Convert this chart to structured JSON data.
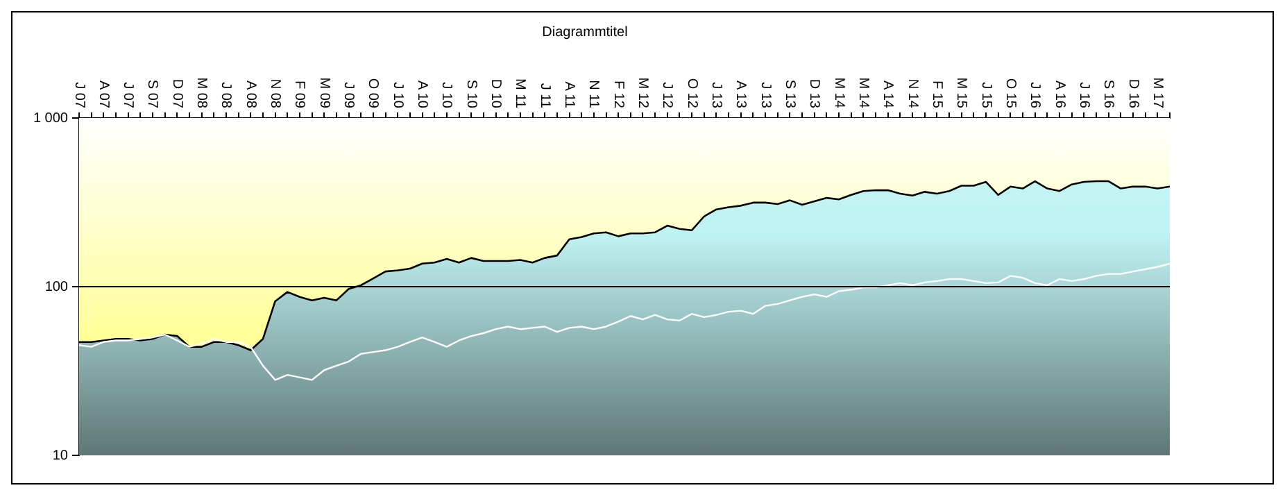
{
  "chart_data": {
    "type": "line",
    "title": "Diagrammtitel",
    "categories": [
      "J 07",
      null,
      "A 07",
      null,
      "J 07",
      null,
      "S 07",
      null,
      "D 07",
      null,
      "M 08",
      null,
      "J 08",
      null,
      "A 08",
      null,
      "N 08",
      null,
      "F 09",
      null,
      "M 09",
      null,
      "J 09",
      null,
      "O 09",
      null,
      "J 10",
      null,
      "A 10",
      null,
      "J 10",
      null,
      "S 10",
      null,
      "D 10",
      null,
      "M 11",
      null,
      "J 11",
      null,
      "A 11",
      null,
      "N 11",
      null,
      "F 12",
      null,
      "M 12",
      null,
      "J 12",
      null,
      "O 12",
      null,
      "J 13",
      null,
      "A 13",
      null,
      "J 13",
      null,
      "S 13",
      null,
      "D 13",
      null,
      "M 14",
      null,
      "M 14",
      null,
      "A 14",
      null,
      "N 14",
      null,
      "F 15",
      null,
      "M 15",
      null,
      "J 15",
      null,
      "O 15",
      null,
      "J 16",
      null,
      "A 16",
      null,
      "J 16",
      null,
      "S 16",
      null,
      "D 16",
      null,
      "M 17",
      null
    ],
    "series": [
      {
        "type": "area",
        "color": "#000000",
        "values": [
          47,
          47,
          48,
          49,
          49,
          48,
          49,
          52,
          51,
          44,
          44,
          47,
          47,
          45,
          42,
          49,
          82,
          93,
          87,
          83,
          86,
          83,
          97,
          102,
          112,
          123,
          125,
          128,
          137,
          139,
          146,
          139,
          148,
          142,
          142,
          142,
          144,
          139,
          148,
          153,
          191,
          197,
          207,
          210,
          199,
          207,
          207,
          210,
          230,
          220,
          216,
          261,
          287,
          296,
          302,
          315,
          315,
          309,
          325,
          306,
          321,
          336,
          329,
          350,
          369,
          373,
          373,
          356,
          347,
          365,
          356,
          369,
          397,
          397,
          418,
          350,
          392,
          382,
          422,
          382,
          369,
          404,
          418,
          422,
          422,
          382,
          392,
          392,
          382,
          392
        ]
      },
      {
        "type": "line",
        "color": "#ffffff",
        "values": [
          45,
          44,
          47,
          48,
          48,
          49,
          50,
          52,
          48,
          44,
          46,
          49,
          47,
          47,
          44,
          34,
          28,
          30,
          29,
          28,
          32,
          34,
          36,
          40,
          41,
          42,
          44,
          47,
          50,
          47,
          44,
          48,
          51,
          53,
          56,
          58,
          56,
          57,
          58,
          54,
          57,
          58,
          56,
          58,
          62,
          67,
          64,
          68,
          64,
          63,
          69,
          66,
          68,
          71,
          72,
          69,
          77,
          79,
          83,
          87,
          90,
          87,
          94,
          96,
          99,
          99,
          102,
          105,
          102,
          106,
          108,
          111,
          111,
          108,
          105,
          106,
          116,
          113,
          105,
          102,
          111,
          108,
          111,
          116,
          119,
          119,
          123,
          127,
          131,
          137
        ]
      }
    ],
    "ref_lines": [
      {
        "axis": "y",
        "value": 100,
        "color": "#000000"
      }
    ],
    "log": "y",
    "ylim": [
      10,
      1000
    ],
    "yticks": [
      {
        "value": 1000,
        "label": "1 000"
      },
      100,
      10
    ],
    "grid": false,
    "legend": false
  }
}
